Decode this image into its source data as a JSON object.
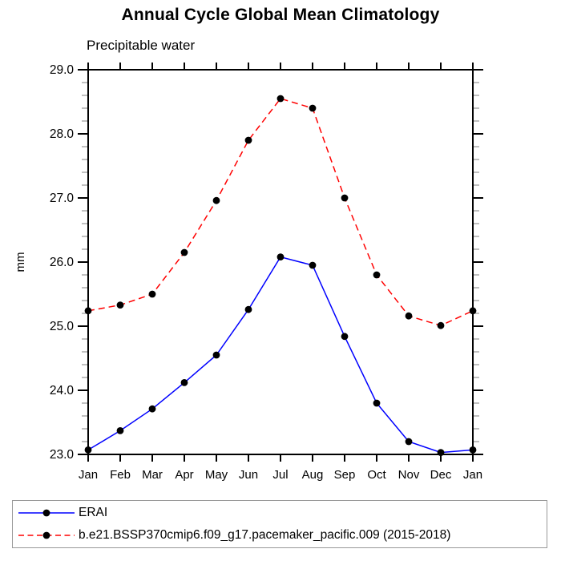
{
  "chart_data": {
    "type": "line",
    "title": "Annual Cycle Global Mean Climatology",
    "subtitle": "Precipitable water",
    "ylabel": "mm",
    "categories": [
      "Jan",
      "Feb",
      "Mar",
      "Apr",
      "May",
      "Jun",
      "Jul",
      "Aug",
      "Sep",
      "Oct",
      "Nov",
      "Dec",
      "Jan"
    ],
    "ylim": [
      23.0,
      29.0
    ],
    "ytick_major_step": 1.0,
    "ytick_minor_step": 0.2,
    "ytick_labels": [
      "23.0",
      "24.0",
      "25.0",
      "26.0",
      "27.0",
      "28.0",
      "29.0"
    ],
    "grid": false,
    "legend_position": "bottom",
    "series": [
      {
        "name": "ERAI",
        "color": "#0000ff",
        "line_style": "solid",
        "marker": "circle",
        "marker_color": "#000000",
        "values": [
          23.07,
          23.37,
          23.71,
          24.12,
          24.55,
          25.26,
          26.08,
          25.95,
          24.84,
          23.8,
          23.2,
          23.03,
          23.07
        ]
      },
      {
        "name": "b.e21.BSSP370cmip6.f09_g17.pacemaker_pacific.009 (2015-2018)",
        "color": "#ff0000",
        "line_style": "dashed",
        "marker": "circle",
        "marker_color": "#000000",
        "values": [
          25.24,
          25.33,
          25.5,
          26.15,
          26.96,
          27.9,
          28.55,
          28.4,
          27.0,
          25.8,
          25.16,
          25.01,
          25.24
        ]
      }
    ],
    "colors": {
      "axis": "#000000",
      "minor_tick": "#808080",
      "text": "#000000",
      "legend_border": "#999999",
      "background": "#ffffff"
    }
  }
}
